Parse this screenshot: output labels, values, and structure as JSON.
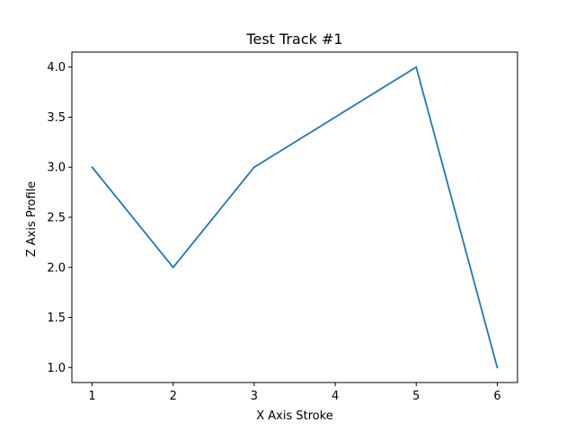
{
  "chart_data": {
    "type": "line",
    "title": "Test Track #1",
    "xlabel": "X Axis Stroke",
    "ylabel": "Z Axis Profile",
    "x": [
      1,
      2,
      3,
      4,
      5,
      6
    ],
    "series": [
      {
        "values": [
          3.0,
          2.0,
          3.0,
          3.5,
          4.0,
          1.0
        ],
        "color": "#1f77b4"
      }
    ],
    "xlim": [
      0.75,
      6.25
    ],
    "ylim": [
      0.85,
      4.15
    ],
    "xticks": [
      1,
      2,
      3,
      4,
      5,
      6
    ],
    "xtick_labels": [
      "1",
      "2",
      "3",
      "4",
      "5",
      "6"
    ],
    "yticks": [
      1.0,
      1.5,
      2.0,
      2.5,
      3.0,
      3.5,
      4.0
    ],
    "ytick_labels": [
      "1.0",
      "1.5",
      "2.0",
      "2.5",
      "3.0",
      "3.5",
      "4.0"
    ],
    "grid": false,
    "legend": "none"
  }
}
